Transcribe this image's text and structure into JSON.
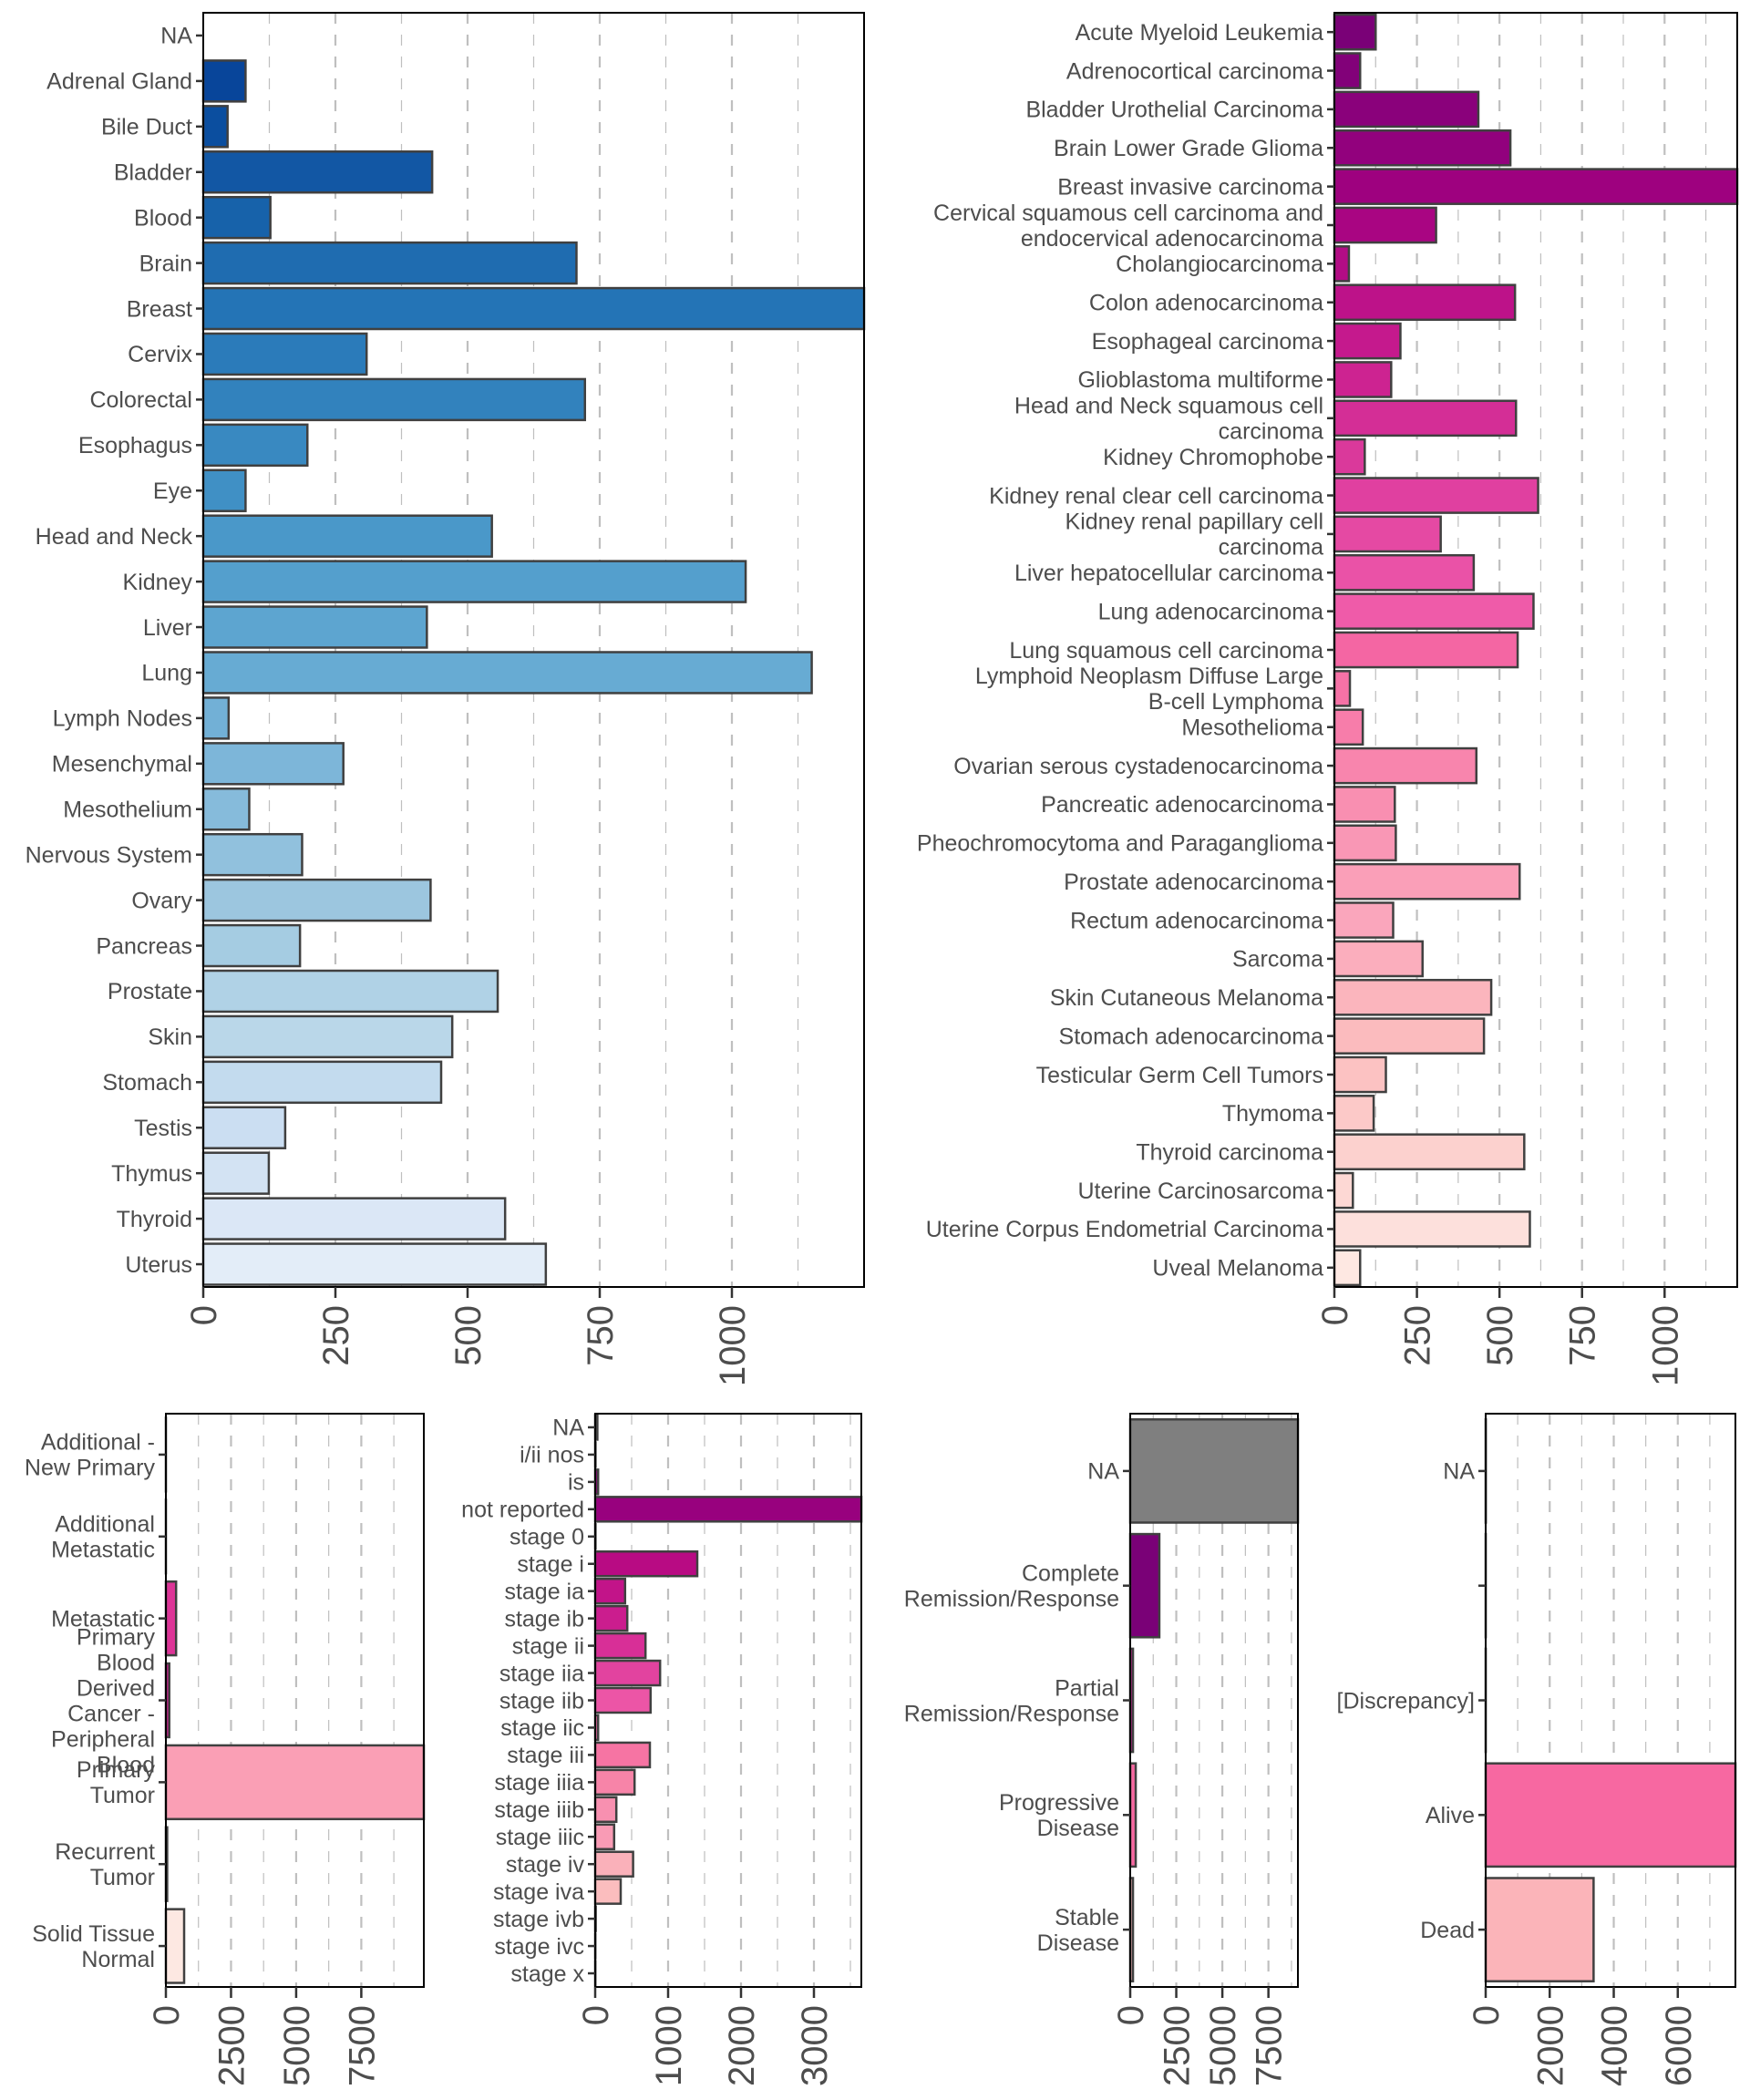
{
  "chart_data": [
    {
      "id": "tissue",
      "type": "bar",
      "orientation": "horizontal",
      "title": "",
      "xlabel": "",
      "ylabel": "",
      "xlim": [
        0,
        1250
      ],
      "x_ticks": [
        0,
        250,
        500,
        750,
        1000
      ],
      "x_tick_labels": [
        "0",
        "250",
        "500",
        "750",
        "1000"
      ],
      "grid": "vertical-dashed",
      "legend": "none",
      "categories": [
        "NA",
        "Adrenal Gland",
        "Bile Duct",
        "Bladder",
        "Blood",
        "Brain",
        "Breast",
        "Cervix",
        "Colorectal",
        "Esophagus",
        "Eye",
        "Head and Neck",
        "Kidney",
        "Liver",
        "Lung",
        "Lymph Nodes",
        "Mesenchymal",
        "Mesothelium",
        "Nervous System",
        "Ovary",
        "Pancreas",
        "Prostate",
        "Skin",
        "Stomach",
        "Testis",
        "Thymus",
        "Thyroid",
        "Uterus"
      ],
      "values": [
        0,
        80,
        46,
        433,
        127,
        706,
        1260,
        309,
        722,
        197,
        80,
        546,
        1026,
        423,
        1151,
        48,
        265,
        87,
        187,
        430,
        183,
        557,
        471,
        450,
        155,
        124,
        571,
        648
      ],
      "colors": [
        "#ffffff",
        "#08459a",
        "#0b4e9f",
        "#1257a4",
        "#1762aa",
        "#1f6cb0",
        "#2474b6",
        "#2b7bba",
        "#3282bd",
        "#3989c1",
        "#4090c5",
        "#4a98c9",
        "#549fcd",
        "#5da5d0",
        "#67abd3",
        "#72b0d6",
        "#7db6d9",
        "#86bbdb",
        "#91c1dd",
        "#9cc6df",
        "#a5cce2",
        "#b0d2e6",
        "#bad7e9",
        "#c3dbee",
        "#cbdef2",
        "#d3e3f3",
        "#dbe7f6",
        "#e3edf8"
      ]
    },
    {
      "id": "project",
      "type": "bar",
      "orientation": "horizontal",
      "title": "",
      "xlabel": "",
      "ylabel": "",
      "xlim": [
        0,
        1220
      ],
      "x_ticks": [
        0,
        250,
        500,
        750,
        1000
      ],
      "x_tick_labels": [
        "0",
        "250",
        "500",
        "750",
        "1000"
      ],
      "grid": "vertical-dashed",
      "legend": "none",
      "categories": [
        "Acute Myeloid Leukemia",
        "Adrenocortical carcinoma",
        "Bladder Urothelial Carcinoma",
        "Brain Lower Grade Glioma",
        "Breast invasive carcinoma",
        "Cervical squamous cell carcinoma and\nendocervical adenocarcinoma",
        "Cholangiocarcinoma",
        "Colon adenocarcinoma",
        "Esophageal carcinoma",
        "Glioblastoma multiforme",
        "Head and Neck squamous cell\ncarcinoma",
        "Kidney Chromophobe",
        "Kidney renal clear cell carcinoma",
        "Kidney renal papillary cell\ncarcinoma",
        "Liver hepatocellular carcinoma",
        "Lung adenocarcinoma",
        "Lung squamous cell carcinoma",
        "Lymphoid Neoplasm Diffuse Large\nB-cell Lymphoma",
        "Mesothelioma",
        "Ovarian serous cystadenocarcinoma",
        "Pancreatic adenocarcinoma",
        "Pheochromocytoma and Paraganglioma",
        "Prostate adenocarcinoma",
        "Rectum adenocarcinoma",
        "Sarcoma",
        "Skin Cutaneous Melanoma",
        "Stomach adenocarcinoma",
        "Testicular Germ Cell Tumors",
        "Thymoma",
        "Thyroid carcinoma",
        "Uterine Carcinosarcoma",
        "Uterine Corpus Endometrial Carcinoma",
        "Uveal Melanoma"
      ],
      "values": [
        125,
        78,
        436,
        533,
        1230,
        308,
        44,
        547,
        200,
        172,
        550,
        92,
        617,
        322,
        422,
        603,
        555,
        47,
        86,
        430,
        183,
        186,
        561,
        178,
        267,
        475,
        453,
        156,
        119,
        575,
        56,
        592,
        78
      ],
      "colors": [
        "#7a0177",
        "#820179",
        "#8a017b",
        "#92017d",
        "#9e017f",
        "#a90582",
        "#b30c85",
        "#bd1289",
        "#c5198d",
        "#cd2391",
        "#d42e96",
        "#da399b",
        "#e040a0",
        "#e549a3",
        "#ea52a7",
        "#ef5ba9",
        "#f466a3",
        "#f672a6",
        "#f77daa",
        "#f885ad",
        "#f98fb1",
        "#f997b5",
        "#fa9fb8",
        "#faa6bc",
        "#fbaebd",
        "#fbb5bd",
        "#fbbbbe",
        "#fcc2c2",
        "#fcc9c8",
        "#fcd1ce",
        "#fdd8d4",
        "#fde0dc",
        "#fee8e2"
      ]
    },
    {
      "id": "sample_type",
      "type": "bar",
      "orientation": "horizontal",
      "title": "",
      "xlabel": "",
      "ylabel": "",
      "xlim": [
        0,
        9900
      ],
      "x_ticks": [
        0,
        2500,
        5000,
        7500
      ],
      "x_tick_labels": [
        "0",
        "2500",
        "5000",
        "7500"
      ],
      "grid": "vertical-dashed",
      "legend": "none",
      "categories": [
        "Additional -\nNew Primary",
        "Additional\nMetastatic",
        "Metastatic",
        "Primary\nBlood\nDerived\nCancer -\nPeripheral\nBlood",
        "Primary\nTumor",
        "Recurrent\nTumor",
        "Solid Tissue\nNormal"
      ],
      "values": [
        1,
        1,
        392,
        130,
        9900,
        50,
        700
      ],
      "colors": [
        "#7a0177",
        "#ae017e",
        "#dd3497",
        "#c51b8a",
        "#fa9fb5",
        "#f768a1",
        "#fde8e2"
      ]
    },
    {
      "id": "stage",
      "type": "bar",
      "orientation": "horizontal",
      "title": "",
      "xlabel": "",
      "ylabel": "",
      "xlim": [
        0,
        3650
      ],
      "x_ticks": [
        0,
        1000,
        2000,
        3000
      ],
      "x_tick_labels": [
        "0",
        "1000",
        "2000",
        "3000"
      ],
      "grid": "vertical-dashed",
      "legend": "none",
      "categories": [
        "NA",
        "i/ii nos",
        "is",
        "not reported",
        "stage 0",
        "stage i",
        "stage ia",
        "stage ib",
        "stage ii",
        "stage iia",
        "stage iib",
        "stage iic",
        "stage iii",
        "stage iiia",
        "stage iiib",
        "stage iiic",
        "stage iv",
        "stage iva",
        "stage ivb",
        "stage ivc",
        "stage x"
      ],
      "values": [
        30,
        5,
        40,
        3650,
        5,
        1400,
        410,
        440,
        690,
        890,
        760,
        40,
        750,
        540,
        290,
        260,
        520,
        350,
        8,
        3,
        3
      ],
      "colors": [
        "#7a0177",
        "#86017a",
        "#90017c",
        "#98017e",
        "#a5037f",
        "#b80b83",
        "#c21489",
        "#cb1d8e",
        "#d82f97",
        "#e2439f",
        "#ec55a6",
        "#f065a3",
        "#f674a3",
        "#f784a8",
        "#f890b0",
        "#f99bb5",
        "#fab1ba",
        "#fbbdbe",
        "#fcccc8",
        "#fdd9d3",
        "#fee6df"
      ]
    },
    {
      "id": "treatment_response",
      "type": "bar",
      "orientation": "horizontal",
      "title": "",
      "xlabel": "",
      "ylabel": "",
      "xlim": [
        0,
        9100
      ],
      "x_ticks": [
        0,
        2500,
        5000,
        7500
      ],
      "x_tick_labels": [
        "0",
        "2500",
        "5000",
        "7500"
      ],
      "grid": "vertical-dashed",
      "legend": "none",
      "categories": [
        "NA",
        "Complete\nRemission/Response",
        "Partial\nRemission/Response",
        "Progressive\nDisease",
        "Stable\nDisease"
      ],
      "values": [
        9100,
        1580,
        150,
        300,
        150
      ],
      "colors": [
        "#7f7f7f",
        "#7a0177",
        "#c51b8a",
        "#f768a1",
        "#fbb4b9"
      ]
    },
    {
      "id": "vital_status",
      "type": "bar",
      "orientation": "horizontal",
      "title": "",
      "xlabel": "",
      "ylabel": "",
      "xlim": [
        0,
        7800
      ],
      "x_ticks": [
        0,
        2000,
        4000,
        6000
      ],
      "x_tick_labels": [
        "0",
        "2000",
        "4000",
        "6000"
      ],
      "grid": "vertical-dashed",
      "legend": "none",
      "categories": [
        "NA",
        "",
        "[Discrepancy]",
        "Alive",
        "Dead"
      ],
      "values": [
        5,
        2,
        2,
        7800,
        3370
      ],
      "colors": [
        "#7f7f7f",
        "#ae017e",
        "#dd3497",
        "#f768a1",
        "#fbb4b9"
      ]
    }
  ],
  "style": {
    "bar_stroke": "#404040",
    "grid_color": "#bfbfbf",
    "axis_color": "#000000",
    "text_color": "#4d4d4d"
  }
}
